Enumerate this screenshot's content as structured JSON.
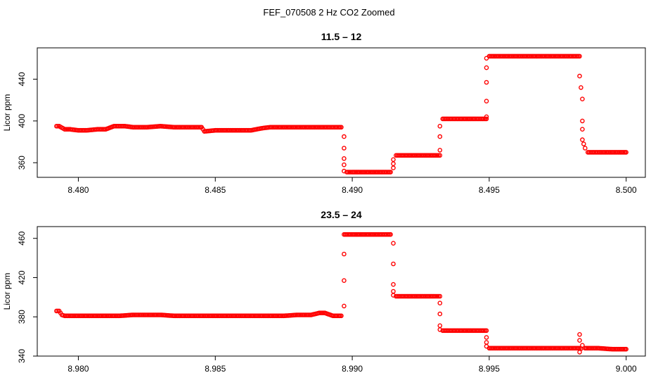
{
  "figure": {
    "title": "FEF_070508  2 Hz CO2 Zoomed"
  },
  "chart_data": [
    {
      "type": "scatter",
      "title": "11.5 – 12",
      "xlabel": "",
      "ylabel": "Licor ppm",
      "xlim": [
        8.4785,
        8.5007
      ],
      "ylim": [
        346,
        470
      ],
      "xticks": [
        8.48,
        8.485,
        8.49,
        8.495,
        8.5
      ],
      "xtick_labels": [
        "8.480",
        "8.485",
        "8.490",
        "8.495",
        "8.500"
      ],
      "yticks": [
        360,
        400,
        440
      ],
      "ytick_labels": [
        "360",
        "400",
        "440"
      ],
      "color": "#ff0000",
      "marker": "open-circle",
      "grid": false,
      "segments": [
        {
          "x": [
            8.4792,
            8.4793,
            8.4795,
            8.4797,
            8.48,
            8.4803,
            8.4807,
            8.481,
            8.4813,
            8.4817,
            8.482,
            8.4825,
            8.483,
            8.4835,
            8.484,
            8.4845,
            8.4846,
            8.485,
            8.4855,
            8.486,
            8.4863,
            8.4867,
            8.487,
            8.4875,
            8.488,
            8.4885,
            8.489,
            8.4896
          ],
          "y": [
            395,
            395,
            392,
            392,
            391,
            391,
            392,
            392,
            395,
            395,
            394,
            394,
            395,
            394,
            394,
            394,
            390,
            391,
            391,
            391,
            391,
            393,
            394,
            394,
            394,
            394,
            394,
            394
          ]
        },
        {
          "x": [
            8.4897,
            8.4897,
            8.4897,
            8.4897,
            8.4897
          ],
          "y": [
            385,
            374,
            364,
            358,
            352
          ]
        },
        {
          "x": [
            8.4898,
            8.49,
            8.4905,
            8.491,
            8.4914
          ],
          "y": [
            351,
            351,
            351,
            351,
            351
          ]
        },
        {
          "x": [
            8.4915,
            8.4915,
            8.4915
          ],
          "y": [
            355,
            359,
            363
          ]
        },
        {
          "x": [
            8.4916,
            8.492,
            8.4925,
            8.493,
            8.4932
          ],
          "y": [
            367,
            367,
            367,
            367,
            367
          ]
        },
        {
          "x": [
            8.4932,
            8.4932,
            8.4932
          ],
          "y": [
            372,
            385,
            395
          ]
        },
        {
          "x": [
            8.4933,
            8.4937,
            8.494,
            8.4945,
            8.4949
          ],
          "y": [
            402,
            402,
            402,
            402,
            402
          ]
        },
        {
          "x": [
            8.4949,
            8.4949,
            8.4949,
            8.4949,
            8.4949
          ],
          "y": [
            404,
            419,
            437,
            451,
            460
          ]
        },
        {
          "x": [
            8.495,
            8.4955,
            8.496,
            8.4965,
            8.497,
            8.4975,
            8.498,
            8.4983
          ],
          "y": [
            462,
            462,
            462,
            462,
            462,
            462,
            462,
            462
          ]
        },
        {
          "x": [
            8.4983,
            8.4984,
            8.4984,
            8.4984,
            8.4984,
            8.4985
          ],
          "y": [
            443,
            421,
            400,
            392,
            382,
            374
          ]
        },
        {
          "x": [
            8.4986,
            8.499,
            8.4995,
            8.5
          ],
          "y": [
            370,
            370,
            370,
            370
          ]
        }
      ]
    },
    {
      "type": "scatter",
      "title": "23.5 – 24",
      "xlabel": "",
      "ylabel": "Licor ppm",
      "xlim": [
        8.9785,
        9.0007
      ],
      "ylim": [
        340,
        472
      ],
      "xticks": [
        8.98,
        8.985,
        8.99,
        8.995,
        9.0
      ],
      "xtick_labels": [
        "8.980",
        "8.985",
        "8.990",
        "8.995",
        "9.000"
      ],
      "yticks": [
        340,
        380,
        420,
        460
      ],
      "ytick_labels": [
        "340",
        "380",
        "420",
        "460"
      ],
      "color": "#ff0000",
      "marker": "open-circle",
      "grid": false,
      "segments": [
        {
          "x": [
            8.9792,
            8.9793,
            8.9794,
            8.9795,
            8.98,
            8.9805,
            8.981,
            8.9815,
            8.982,
            8.9825,
            8.983,
            8.9835,
            8.984,
            8.9845,
            8.985,
            8.9855,
            8.986,
            8.9865,
            8.987,
            8.9875,
            8.988,
            8.9885,
            8.9888,
            8.989,
            8.9893,
            8.9896
          ],
          "y": [
            386,
            386,
            382,
            381,
            381,
            381,
            381,
            381,
            382,
            382,
            382,
            381,
            381,
            381,
            381,
            381,
            381,
            381,
            381,
            381,
            382,
            382,
            384,
            384,
            381,
            381
          ]
        },
        {
          "x": [
            8.9897,
            8.9897,
            8.9897
          ],
          "y": [
            391,
            417,
            444
          ]
        },
        {
          "x": [
            8.9897,
            8.99,
            8.9905,
            8.991,
            8.9914
          ],
          "y": [
            464,
            464,
            464,
            464,
            464
          ]
        },
        {
          "x": [
            8.9915,
            8.9915,
            8.9915,
            8.9915,
            8.9915
          ],
          "y": [
            455,
            434,
            413,
            406,
            402
          ]
        },
        {
          "x": [
            8.9916,
            8.992,
            8.9925,
            8.993,
            8.9932
          ],
          "y": [
            401,
            401,
            401,
            401,
            401
          ]
        },
        {
          "x": [
            8.9932,
            8.9932,
            8.9932,
            8.9932
          ],
          "y": [
            394,
            383,
            371,
            367
          ]
        },
        {
          "x": [
            8.9933,
            8.9937,
            8.994,
            8.9945,
            8.9949
          ],
          "y": [
            366,
            366,
            366,
            366,
            366
          ]
        },
        {
          "x": [
            8.9949,
            8.9949,
            8.9949
          ],
          "y": [
            359,
            354,
            350
          ]
        },
        {
          "x": [
            8.995,
            8.9955,
            8.996,
            8.9965,
            8.997,
            8.9975,
            8.998,
            8.9983
          ],
          "y": [
            348,
            348,
            348,
            348,
            348,
            348,
            348,
            348
          ]
        },
        {
          "x": [
            8.9983,
            8.9983,
            8.9983,
            8.9984
          ],
          "y": [
            362,
            356,
            344,
            351
          ]
        },
        {
          "x": [
            8.9985,
            8.999,
            8.9995,
            9.0
          ],
          "y": [
            348,
            348,
            347,
            347
          ]
        }
      ]
    }
  ]
}
